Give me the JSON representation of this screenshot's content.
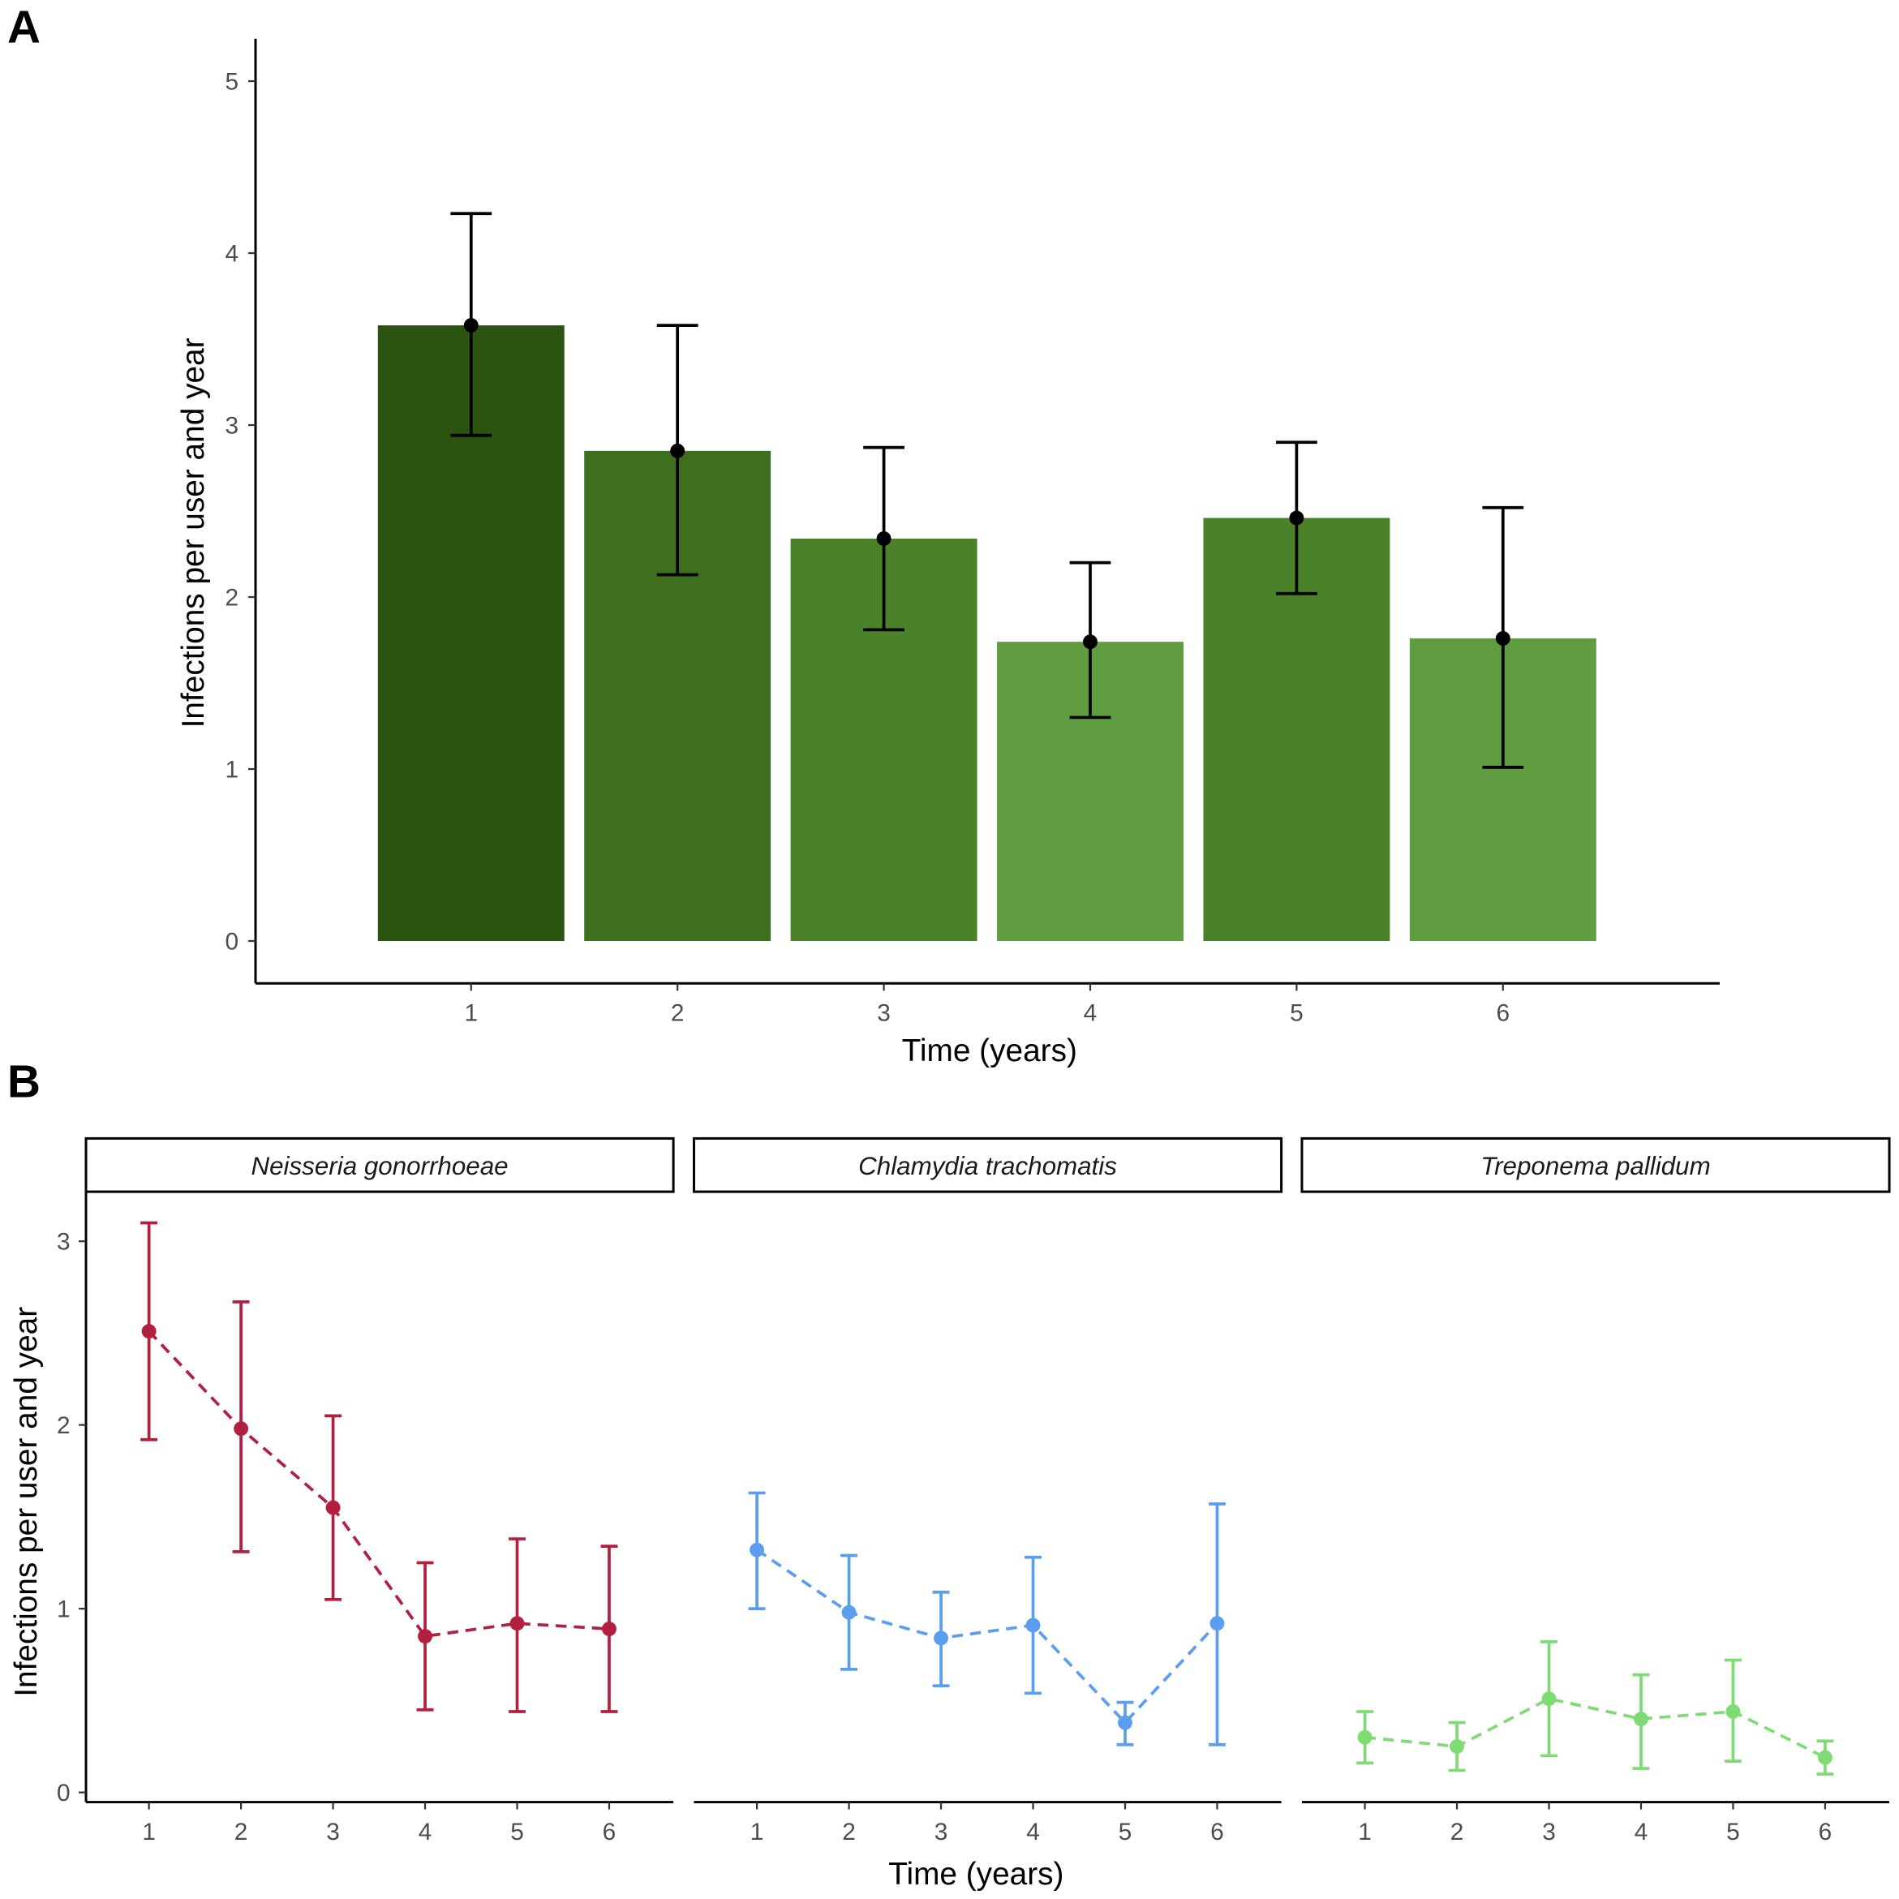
{
  "chart_data": [
    {
      "panel_label": "A",
      "type": "bar",
      "xlabel": "Time (years)",
      "ylabel": "Infections per user and year",
      "categories": [
        "1",
        "2",
        "3",
        "4",
        "5",
        "6"
      ],
      "values": [
        3.58,
        2.85,
        2.34,
        1.74,
        2.46,
        1.76
      ],
      "error_upper": [
        4.23,
        3.58,
        2.87,
        2.2,
        2.9,
        2.52
      ],
      "error_lower": [
        2.94,
        2.13,
        1.81,
        1.3,
        2.02,
        1.01
      ],
      "bar_colors": [
        "#2b5410",
        "#3e6f1f",
        "#4a8229",
        "#609c40",
        "#4a8229",
        "#609c40"
      ],
      "ylim": [
        0,
        5.2
      ],
      "yticks": [
        "0",
        "1",
        "2",
        "3",
        "4",
        "5"
      ],
      "grid": false
    },
    {
      "panel_label": "B",
      "type": "line",
      "line_style": "dashed",
      "xlabel": "Time (years)",
      "ylabel": "Infections per user and year",
      "x": [
        "1",
        "2",
        "3",
        "4",
        "5",
        "6"
      ],
      "yticks": [
        "0",
        "1",
        "2",
        "3"
      ],
      "ylim": [
        0,
        3.3
      ],
      "grid": false,
      "facets": [
        {
          "name": "Neisseria gonorrhoeae",
          "color": "#b3203f",
          "values": [
            2.51,
            1.98,
            1.55,
            0.85,
            0.92,
            0.89
          ],
          "error_upper": [
            3.1,
            2.67,
            2.05,
            1.25,
            1.38,
            1.34
          ],
          "error_lower": [
            1.92,
            1.31,
            1.05,
            0.45,
            0.44,
            0.44
          ]
        },
        {
          "name": "Chlamydia trachomatis",
          "color": "#5b9ef0",
          "values": [
            1.32,
            0.98,
            0.84,
            0.91,
            0.38,
            0.92
          ],
          "error_upper": [
            1.63,
            1.29,
            1.09,
            1.28,
            0.49,
            1.57
          ],
          "error_lower": [
            1.0,
            0.67,
            0.58,
            0.54,
            0.26,
            0.26
          ]
        },
        {
          "name": "Treponema pallidum",
          "color": "#7fdc74",
          "values": [
            0.3,
            0.25,
            0.51,
            0.4,
            0.44,
            0.19
          ],
          "error_upper": [
            0.44,
            0.38,
            0.82,
            0.64,
            0.72,
            0.28
          ],
          "error_lower": [
            0.16,
            0.12,
            0.2,
            0.13,
            0.17,
            0.1
          ]
        }
      ]
    }
  ]
}
